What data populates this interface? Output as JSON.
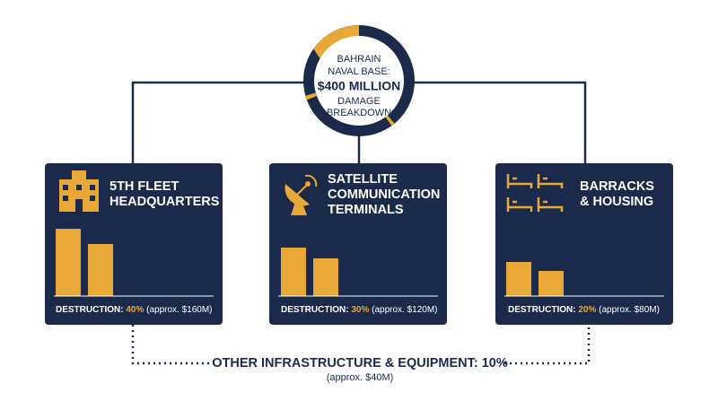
{
  "center": {
    "line1": "BAHRAIN",
    "line2": "NAVAL BASE:",
    "amount": "$400 MILLION",
    "line3": "DAMAGE",
    "line4": "BREAKDOWN"
  },
  "cards": [
    {
      "title": [
        "5TH FLEET",
        "HEADQUARTERS"
      ],
      "label": "DESTRUCTION:",
      "percent": "40%",
      "approx": "(approx. $160M)"
    },
    {
      "title": [
        "SATELLITE",
        "COMMUNICATION",
        "TERMINALS"
      ],
      "label": "DESTRUCTION:",
      "percent": "30%",
      "approx": "(approx. $120M)"
    },
    {
      "title": [
        "BARRACKS",
        "& HOUSING"
      ],
      "label": "DESTRUCTION:",
      "percent": "20%",
      "approx": "(approx. $80M)"
    }
  ],
  "other": {
    "title": "OTHER INFRASTRUCTURE & EQUIPMENT: 10%",
    "approx": "(approx. $40M)"
  }
}
